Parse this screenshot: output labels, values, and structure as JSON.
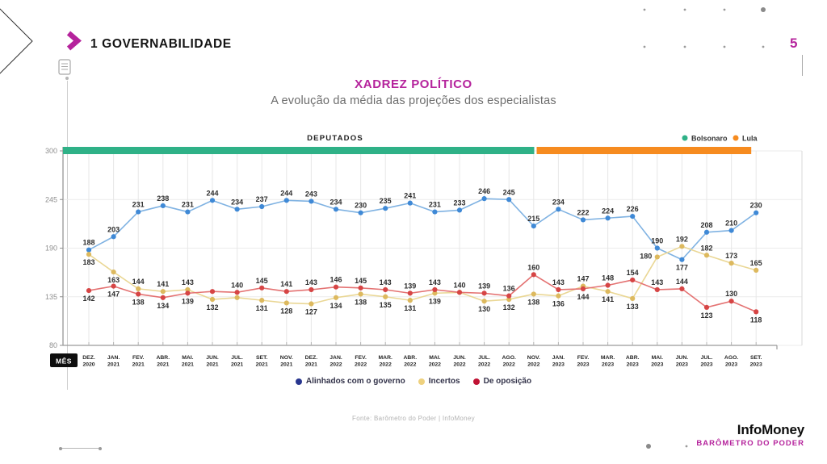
{
  "header": {
    "section_number": "1",
    "section_title": "GOVERNABILIDADE",
    "page_number": "5"
  },
  "title": "XADREZ POLÍTICO",
  "subtitle": "A evolução da média das projeções dos especialistas",
  "chart_data": {
    "type": "line",
    "title": "XADREZ POLÍTICO",
    "xlabel": "MÊS",
    "ylim": [
      80,
      300
    ],
    "y_ticks": [
      300,
      245,
      190,
      135,
      80
    ],
    "grid": true,
    "top_bar": {
      "label": "DEPUTADOS",
      "split_index": 18,
      "segments": [
        {
          "name": "Bolsonaro",
          "color": "#2fb187"
        },
        {
          "name": "Lula",
          "color": "#f68b1f"
        }
      ]
    },
    "months": [
      {
        "m": "DEZ.",
        "y": "2020"
      },
      {
        "m": "JAN.",
        "y": "2021"
      },
      {
        "m": "FEV.",
        "y": "2021"
      },
      {
        "m": "ABR.",
        "y": "2021"
      },
      {
        "m": "MAI.",
        "y": "2021"
      },
      {
        "m": "JUN.",
        "y": "2021"
      },
      {
        "m": "JUL.",
        "y": "2021"
      },
      {
        "m": "SET.",
        "y": "2021"
      },
      {
        "m": "NOV.",
        "y": "2021"
      },
      {
        "m": "DEZ.",
        "y": "2021"
      },
      {
        "m": "JAN.",
        "y": "2022"
      },
      {
        "m": "FEV.",
        "y": "2022"
      },
      {
        "m": "MAR.",
        "y": "2022"
      },
      {
        "m": "ABR.",
        "y": "2022"
      },
      {
        "m": "MAI.",
        "y": "2022"
      },
      {
        "m": "JUN.",
        "y": "2022"
      },
      {
        "m": "JUL.",
        "y": "2022"
      },
      {
        "m": "AGO.",
        "y": "2022"
      },
      {
        "m": "NOV.",
        "y": "2022"
      },
      {
        "m": "JAN.",
        "y": "2023"
      },
      {
        "m": "FEV.",
        "y": "2023"
      },
      {
        "m": "MAR.",
        "y": "2023"
      },
      {
        "m": "ABR.",
        "y": "2023"
      },
      {
        "m": "MAI.",
        "y": "2023"
      },
      {
        "m": "JUN.",
        "y": "2023"
      },
      {
        "m": "JUL.",
        "y": "2023"
      },
      {
        "m": "AGO.",
        "y": "2023"
      },
      {
        "m": "SET.",
        "y": "2023"
      }
    ],
    "series": [
      {
        "name": "Alinhados com o governo",
        "line_color": "#7fb2e2",
        "dot_color": "#3f89d6",
        "legend_color": "#28368f",
        "values": [
          188,
          203,
          231,
          238,
          231,
          244,
          234,
          237,
          244,
          243,
          234,
          230,
          235,
          241,
          231,
          233,
          246,
          245,
          215,
          234,
          222,
          224,
          226,
          190,
          177,
          208,
          210,
          230
        ],
        "label_sides": [
          "a",
          "a",
          "a",
          "a",
          "a",
          "a",
          "a",
          "a",
          "a",
          "a",
          "a",
          "a",
          "a",
          "a",
          "a",
          "a",
          "a",
          "a",
          "a",
          "a",
          "a",
          "a",
          "a",
          "a",
          "b",
          "a",
          "a",
          "a"
        ],
        "label_offsets": {}
      },
      {
        "name": "Incertos",
        "line_color": "#ead795",
        "dot_color": "#ddb95e",
        "legend_color": "#eed17e",
        "values": [
          183,
          163,
          144,
          141,
          143,
          132,
          134,
          131,
          128,
          127,
          134,
          138,
          135,
          131,
          139,
          140,
          130,
          132,
          138,
          136,
          147,
          141,
          133,
          180,
          192,
          182,
          173,
          165
        ],
        "label_sides": [
          "b",
          "b",
          "a",
          "a",
          "a",
          "b",
          "n",
          "b",
          "b",
          "b",
          "b",
          "b",
          "b",
          "b",
          "b",
          "n",
          "b",
          "b",
          "b",
          "b",
          "a",
          "b",
          "b",
          "b",
          "a",
          "a",
          "a",
          "a"
        ],
        "label_offsets": {
          "23": [
            -14,
            -11
          ]
        }
      },
      {
        "name": "De oposição",
        "line_color": "#e47272",
        "dot_color": "#d64545",
        "legend_color": "#c01334",
        "values": [
          142,
          147,
          138,
          134,
          139,
          141,
          140,
          145,
          141,
          143,
          146,
          145,
          143,
          139,
          143,
          140,
          139,
          136,
          160,
          143,
          144,
          148,
          154,
          143,
          144,
          123,
          130,
          118
        ],
        "label_sides": [
          "b",
          "b",
          "b",
          "b",
          "b",
          "n",
          "a",
          "a",
          "a",
          "a",
          "a",
          "a",
          "a",
          "a",
          "a",
          "a",
          "a",
          "a",
          "a",
          "a",
          "b",
          "a",
          "a",
          "a",
          "a",
          "b",
          "a",
          "b"
        ],
        "label_offsets": {}
      }
    ],
    "source": "Fonte: Barômetro do Poder | InfoMoney"
  },
  "footer": {
    "brand": "InfoMoney",
    "report": "BARÔMETRO DO PODER"
  }
}
